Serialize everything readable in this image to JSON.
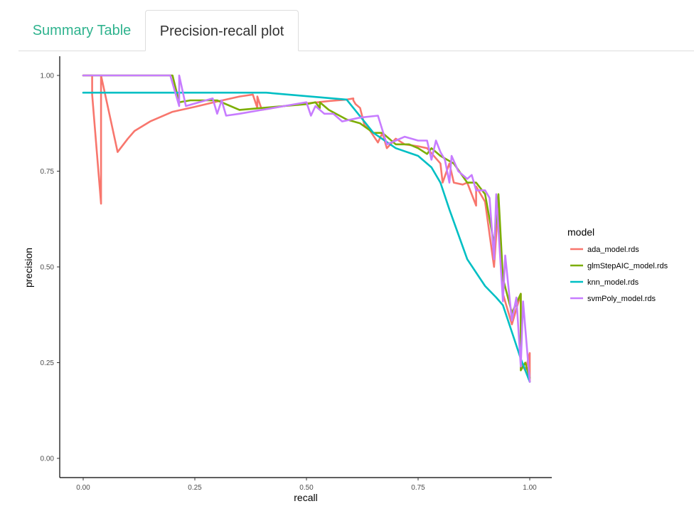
{
  "tabs": [
    {
      "label": "Summary Table",
      "active": false
    },
    {
      "label": "Precision-recall plot",
      "active": true
    }
  ],
  "colors": {
    "tab_inactive": "#2fb38e",
    "tab_active": "#333333"
  },
  "chart_data": {
    "type": "line",
    "title": "",
    "xlabel": "recall",
    "ylabel": "precision",
    "xlim": [
      0.0,
      1.0
    ],
    "ylim": [
      0.0,
      1.0
    ],
    "xticks": [
      "0.00",
      "0.25",
      "0.50",
      "0.75",
      "1.00"
    ],
    "yticks": [
      "0.00",
      "0.25",
      "0.50",
      "0.75",
      "1.00"
    ],
    "grid": false,
    "legend": {
      "title": "model",
      "position": "right"
    },
    "series": [
      {
        "name": "ada_model.rds",
        "color": "#f8766d",
        "points": [
          [
            0.0,
            1.0
          ],
          [
            0.02,
            1.0
          ],
          [
            0.02,
            0.95
          ],
          [
            0.04,
            0.665
          ],
          [
            0.04,
            1.0
          ],
          [
            0.077,
            0.8
          ],
          [
            0.1,
            0.835
          ],
          [
            0.115,
            0.855
          ],
          [
            0.15,
            0.88
          ],
          [
            0.2,
            0.905
          ],
          [
            0.25,
            0.918
          ],
          [
            0.3,
            0.932
          ],
          [
            0.35,
            0.945
          ],
          [
            0.38,
            0.95
          ],
          [
            0.39,
            0.915
          ],
          [
            0.39,
            0.945
          ],
          [
            0.4,
            0.91
          ],
          [
            0.45,
            0.92
          ],
          [
            0.5,
            0.927
          ],
          [
            0.55,
            0.933
          ],
          [
            0.59,
            0.937
          ],
          [
            0.605,
            0.94
          ],
          [
            0.605,
            0.935
          ],
          [
            0.61,
            0.925
          ],
          [
            0.62,
            0.915
          ],
          [
            0.63,
            0.87
          ],
          [
            0.64,
            0.86
          ],
          [
            0.66,
            0.825
          ],
          [
            0.67,
            0.85
          ],
          [
            0.68,
            0.81
          ],
          [
            0.7,
            0.835
          ],
          [
            0.72,
            0.82
          ],
          [
            0.75,
            0.815
          ],
          [
            0.77,
            0.81
          ],
          [
            0.8,
            0.77
          ],
          [
            0.805,
            0.72
          ],
          [
            0.82,
            0.77
          ],
          [
            0.83,
            0.72
          ],
          [
            0.85,
            0.715
          ],
          [
            0.86,
            0.72
          ],
          [
            0.88,
            0.66
          ],
          [
            0.88,
            0.71
          ],
          [
            0.9,
            0.67
          ],
          [
            0.92,
            0.5
          ],
          [
            0.93,
            0.67
          ],
          [
            0.94,
            0.43
          ],
          [
            0.96,
            0.35
          ],
          [
            0.98,
            0.43
          ],
          [
            0.98,
            0.25
          ],
          [
            0.99,
            0.23
          ],
          [
            1.0,
            0.275
          ],
          [
            1.0,
            0.2
          ]
        ]
      },
      {
        "name": "glmStepAIC_model.rds",
        "color": "#7cae00",
        "points": [
          [
            0.0,
            1.0
          ],
          [
            0.2,
            1.0
          ],
          [
            0.215,
            0.93
          ],
          [
            0.24,
            0.935
          ],
          [
            0.3,
            0.935
          ],
          [
            0.35,
            0.91
          ],
          [
            0.4,
            0.915
          ],
          [
            0.45,
            0.92
          ],
          [
            0.5,
            0.925
          ],
          [
            0.52,
            0.93
          ],
          [
            0.53,
            0.915
          ],
          [
            0.53,
            0.93
          ],
          [
            0.55,
            0.91
          ],
          [
            0.59,
            0.885
          ],
          [
            0.62,
            0.875
          ],
          [
            0.65,
            0.85
          ],
          [
            0.67,
            0.85
          ],
          [
            0.7,
            0.82
          ],
          [
            0.73,
            0.82
          ],
          [
            0.75,
            0.81
          ],
          [
            0.77,
            0.795
          ],
          [
            0.78,
            0.81
          ],
          [
            0.8,
            0.79
          ],
          [
            0.83,
            0.77
          ],
          [
            0.86,
            0.72
          ],
          [
            0.88,
            0.72
          ],
          [
            0.9,
            0.69
          ],
          [
            0.92,
            0.56
          ],
          [
            0.93,
            0.69
          ],
          [
            0.94,
            0.47
          ],
          [
            0.96,
            0.38
          ],
          [
            0.98,
            0.43
          ],
          [
            0.98,
            0.23
          ],
          [
            0.99,
            0.25
          ],
          [
            1.0,
            0.21
          ]
        ]
      },
      {
        "name": "knn_model.rds",
        "color": "#00bfc4",
        "points": [
          [
            0.0,
            0.955
          ],
          [
            0.41,
            0.955
          ],
          [
            0.59,
            0.937
          ],
          [
            0.65,
            0.85
          ],
          [
            0.7,
            0.81
          ],
          [
            0.75,
            0.79
          ],
          [
            0.78,
            0.76
          ],
          [
            0.8,
            0.72
          ],
          [
            0.82,
            0.65
          ],
          [
            0.86,
            0.52
          ],
          [
            0.9,
            0.45
          ],
          [
            0.925,
            0.42
          ],
          [
            0.94,
            0.4
          ],
          [
            0.96,
            0.33
          ],
          [
            0.98,
            0.26
          ],
          [
            1.0,
            0.2
          ]
        ]
      },
      {
        "name": "svmPoly_model.rds",
        "color": "#c77cff",
        "points": [
          [
            0.0,
            1.0
          ],
          [
            0.195,
            1.0
          ],
          [
            0.215,
            0.92
          ],
          [
            0.215,
            1.0
          ],
          [
            0.23,
            0.92
          ],
          [
            0.29,
            0.94
          ],
          [
            0.3,
            0.9
          ],
          [
            0.31,
            0.935
          ],
          [
            0.32,
            0.895
          ],
          [
            0.35,
            0.9
          ],
          [
            0.4,
            0.91
          ],
          [
            0.45,
            0.92
          ],
          [
            0.5,
            0.93
          ],
          [
            0.51,
            0.895
          ],
          [
            0.52,
            0.92
          ],
          [
            0.54,
            0.9
          ],
          [
            0.56,
            0.9
          ],
          [
            0.58,
            0.88
          ],
          [
            0.62,
            0.89
          ],
          [
            0.66,
            0.895
          ],
          [
            0.68,
            0.82
          ],
          [
            0.7,
            0.83
          ],
          [
            0.72,
            0.84
          ],
          [
            0.75,
            0.83
          ],
          [
            0.77,
            0.83
          ],
          [
            0.78,
            0.78
          ],
          [
            0.79,
            0.83
          ],
          [
            0.8,
            0.8
          ],
          [
            0.81,
            0.78
          ],
          [
            0.82,
            0.72
          ],
          [
            0.825,
            0.79
          ],
          [
            0.84,
            0.75
          ],
          [
            0.86,
            0.73
          ],
          [
            0.87,
            0.74
          ],
          [
            0.88,
            0.7
          ],
          [
            0.9,
            0.7
          ],
          [
            0.91,
            0.68
          ],
          [
            0.92,
            0.52
          ],
          [
            0.925,
            0.69
          ],
          [
            0.94,
            0.41
          ],
          [
            0.945,
            0.53
          ],
          [
            0.96,
            0.36
          ],
          [
            0.97,
            0.42
          ],
          [
            0.98,
            0.24
          ],
          [
            0.985,
            0.41
          ],
          [
            1.0,
            0.2
          ]
        ]
      }
    ]
  }
}
